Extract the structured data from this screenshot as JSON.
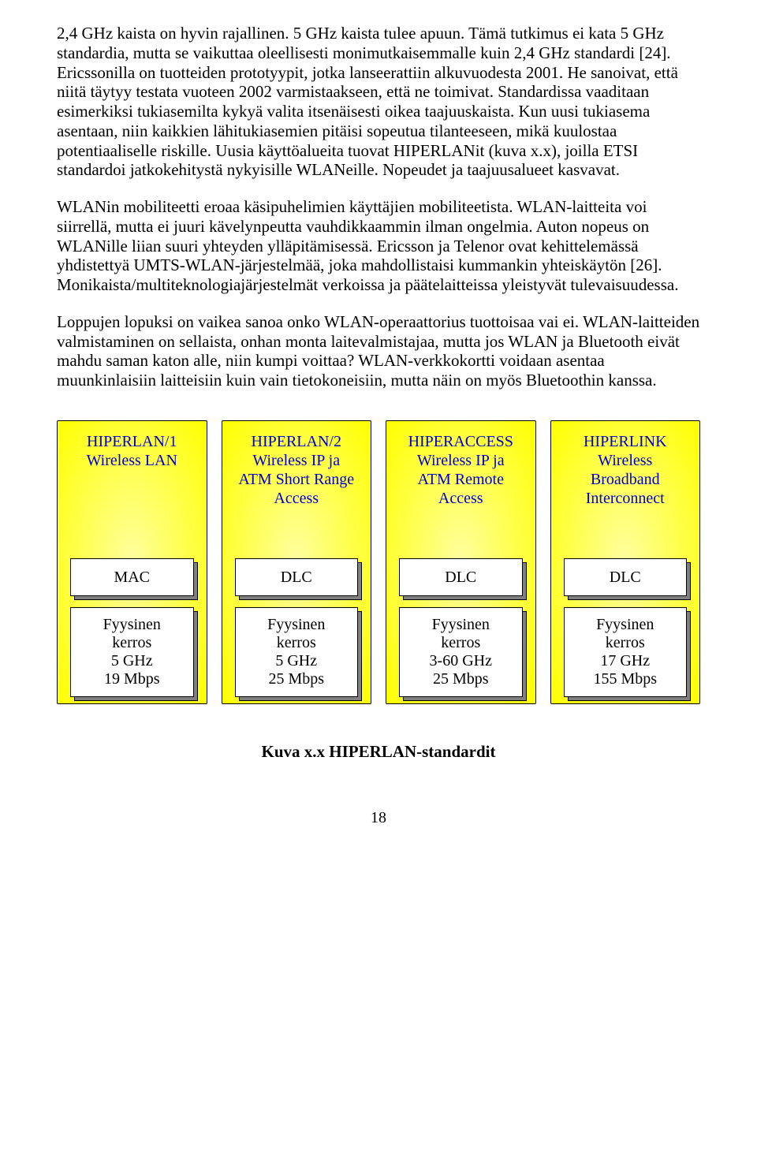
{
  "paragraphs": {
    "p1": "2,4 GHz kaista on hyvin rajallinen. 5 GHz kaista tulee apuun. Tämä tutkimus ei kata 5 GHz standardia, mutta se vaikuttaa oleellisesti monimutkaisemmalle kuin 2,4 GHz standardi [24]. Ericssonilla on tuotteiden prototyypit, jotka lanseerattiin alkuvuodesta 2001. He sanoivat, että niitä täytyy testata vuoteen 2002 varmistaakseen, että ne toimivat. Standardissa vaaditaan esimerkiksi tukiasemilta kykyä valita itsenäisesti oikea taajuuskaista. Kun uusi tukiasema asentaan, niin kaikkien lähitukiasemien pitäisi sopeutua tilanteeseen, mikä kuulostaa potentiaaliselle riskille. Uusia käyttöalueita tuovat HIPERLANit (kuva x.x), joilla ETSI standardoi jatkokehitystä nykyisille WLANeille. Nopeudet ja taajuusalueet kasvavat.",
    "p2": "WLANin mobiliteetti eroaa käsipuhelimien käyttäjien mobiliteetista. WLAN-laitteita voi siirrellä, mutta ei juuri kävelynpeutta vauhdikkaammin ilman ongelmia. Auton nopeus on WLANille liian suuri yhteyden ylläpitämisessä. Ericsson ja Telenor ovat kehittelemässä yhdistettyä UMTS-WLAN-järjestelmää, joka mahdollistaisi kummankin yhteiskäytön [26]. Monikaista/multiteknologiajärjestelmät verkoissa ja päätelaitteissa yleistyvät tulevaisuudessa.",
    "p3": "Loppujen lopuksi on vaikea sanoa onko WLAN-operaattorius tuottoisaa vai ei. WLAN-laitteiden valmistaminen on sellaista, onhan monta laitevalmistajaa, mutta jos WLAN ja Bluetooth eivät mahdu saman katon alle, niin kumpi voittaa? WLAN-verkkokortti voidaan asentaa muunkinlaisiin laitteisiin kuin vain tietokoneisiin, mutta näin on myös Bluetoothin kanssa."
  },
  "diagram": {
    "columns": [
      {
        "title": "HIPERLAN/1\nWireless LAN",
        "layer1": "MAC",
        "layer2": "Fyysinen\nkerros\n5 GHz\n19 Mbps"
      },
      {
        "title": "HIPERLAN/2\nWireless IP ja\nATM Short Range\nAccess",
        "layer1": "DLC",
        "layer2": "Fyysinen\nkerros\n5 GHz\n25 Mbps"
      },
      {
        "title": "HIPERACCESS\nWireless IP ja\nATM Remote\nAccess",
        "layer1": "DLC",
        "layer2": "Fyysinen\nkerros\n3-60 GHz\n25 Mbps"
      },
      {
        "title": "HIPERLINK\nWireless\nBroadband\nInterconnect",
        "layer1": "DLC",
        "layer2": "Fyysinen\nkerros\n17 GHz\n155 Mbps"
      }
    ],
    "caption": "Kuva x.x HIPERLAN-standardit"
  },
  "pagenum": "18",
  "colors": {
    "text": "#000000",
    "title_text": "#0000cc",
    "box_bg": "#ffffff",
    "shadow_bg": "#808080",
    "grad_inner": "#ffffa0",
    "grad_outer": "#ffff00",
    "border": "#000000"
  },
  "fonts": {
    "body_family": "Times New Roman",
    "body_size_pt": 16,
    "caption_weight": "bold"
  }
}
